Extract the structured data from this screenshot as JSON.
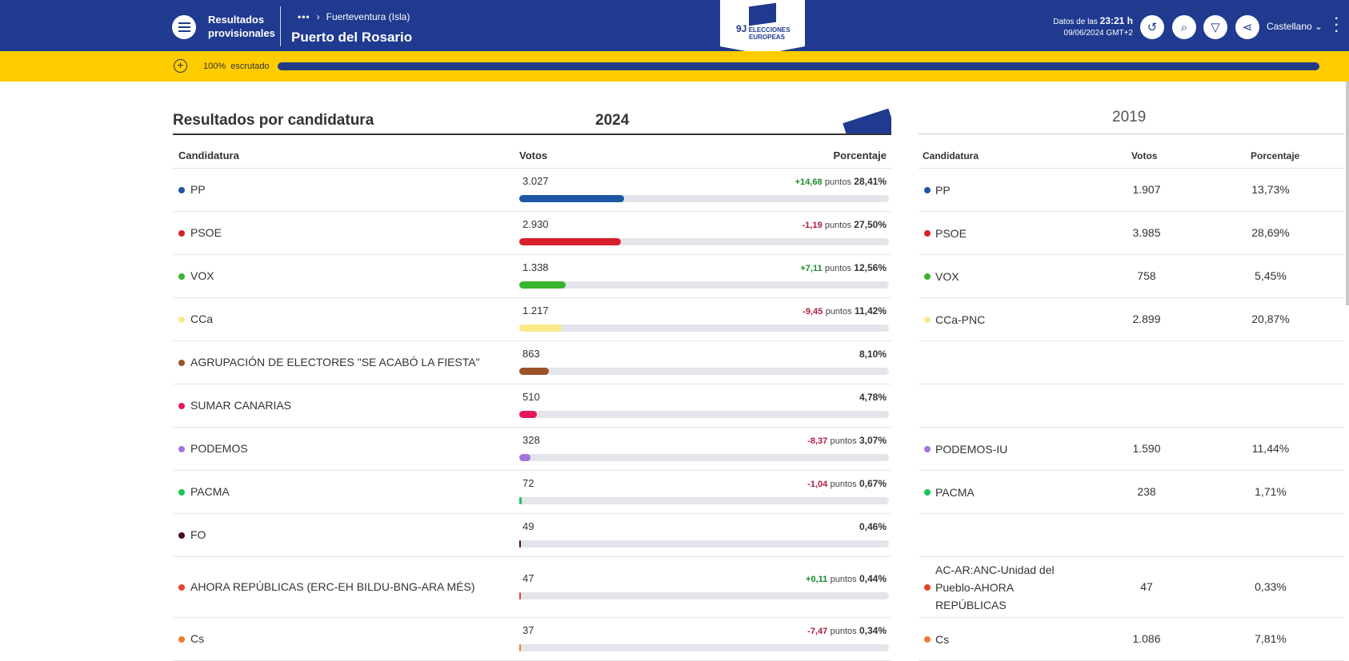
{
  "header": {
    "title_line1": "Resultados",
    "title_line2": "provisionales",
    "breadcrumb_dots": "•••",
    "breadcrumb_sep": "›",
    "breadcrumb_parent": "Fuerteventura (Isla)",
    "place": "Puerto del Rosario",
    "logo_top": "9J",
    "logo_line1": "ELECCIONES",
    "logo_line2": "EUROPEAS",
    "data_prefix": "Datos de las",
    "data_time": "23:21 h",
    "data_date": "09/06/2024 GMT+2",
    "language": "Castellano",
    "icons": [
      "history-icon",
      "search-icon",
      "filter-icon",
      "share-icon"
    ]
  },
  "scan": {
    "percent_text": "100%",
    "label": "escrutado",
    "fraction": 1.0
  },
  "main": {
    "title": "Resultados por candidatura",
    "year": "2024",
    "col_candidatura": "Candidatura",
    "col_votos": "Votos",
    "col_porcentaje": "Porcentaje",
    "rows": [
      {
        "name": "PP",
        "votes": "3.027",
        "delta": "+14,68",
        "delta_sign": "pos",
        "pts": "puntos",
        "pct": "28,41%",
        "share": 28.41,
        "color": "#1c57a5"
      },
      {
        "name": "PSOE",
        "votes": "2.930",
        "delta": "-1,19",
        "delta_sign": "neg",
        "pts": "puntos",
        "pct": "27,50%",
        "share": 27.5,
        "color": "#d7202d"
      },
      {
        "name": "VOX",
        "votes": "1.338",
        "delta": "+7,11",
        "delta_sign": "pos",
        "pts": "puntos",
        "pct": "12,56%",
        "share": 12.56,
        "color": "#39b52d"
      },
      {
        "name": "CCa",
        "votes": "1.217",
        "delta": "-9,45",
        "delta_sign": "neg",
        "pts": "puntos",
        "pct": "11,42%",
        "share": 11.42,
        "color": "#fbe98a"
      },
      {
        "name": "AGRUPACIÓN DE ELECTORES \"SE ACABÓ LA FIESTA\"",
        "votes": "863",
        "delta": "",
        "delta_sign": "",
        "pts": "",
        "pct": "8,10%",
        "share": 8.1,
        "color": "#9b5129"
      },
      {
        "name": "SUMAR CANARIAS",
        "votes": "510",
        "delta": "",
        "delta_sign": "",
        "pts": "",
        "pct": "4,78%",
        "share": 4.78,
        "color": "#e8175d"
      },
      {
        "name": "PODEMOS",
        "votes": "328",
        "delta": "-8,37",
        "delta_sign": "neg",
        "pts": "puntos",
        "pct": "3,07%",
        "share": 3.07,
        "color": "#a474dd"
      },
      {
        "name": "PACMA",
        "votes": "72",
        "delta": "-1,04",
        "delta_sign": "neg",
        "pts": "puntos",
        "pct": "0,67%",
        "share": 0.67,
        "color": "#1dc459"
      },
      {
        "name": "FO",
        "votes": "49",
        "delta": "",
        "delta_sign": "",
        "pts": "",
        "pct": "0,46%",
        "share": 0.46,
        "color": "#4a0f16"
      },
      {
        "name": "AHORA REPÚBLICAS (ERC-EH BILDU-BNG-ARA MÉS)",
        "votes": "47",
        "delta": "+0,11",
        "delta_sign": "pos",
        "pts": "puntos",
        "pct": "0,44%",
        "share": 0.44,
        "color": "#e4462a"
      },
      {
        "name": "Cs",
        "votes": "37",
        "delta": "-7,47",
        "delta_sign": "neg",
        "pts": "puntos",
        "pct": "0,34%",
        "share": 0.34,
        "color": "#ee7b35"
      }
    ]
  },
  "previous": {
    "year": "2019",
    "col_candidatura": "Candidatura",
    "col_votos": "Votos",
    "col_porcentaje": "Porcentaje",
    "rows": [
      {
        "name": "PP",
        "votes": "1.907",
        "pct": "13,73%",
        "color": "#1c57a5"
      },
      {
        "name": "PSOE",
        "votes": "3.985",
        "pct": "28,69%",
        "color": "#d7202d"
      },
      {
        "name": "VOX",
        "votes": "758",
        "pct": "5,45%",
        "color": "#39b52d"
      },
      {
        "name": "CCa-PNC",
        "votes": "2.899",
        "pct": "20,87%",
        "color": "#fbe98a"
      },
      {
        "name": "",
        "votes": "",
        "pct": "",
        "color": ""
      },
      {
        "name": "",
        "votes": "",
        "pct": "",
        "color": ""
      },
      {
        "name": "PODEMOS-IU",
        "votes": "1.590",
        "pct": "11,44%",
        "color": "#a474dd"
      },
      {
        "name": "PACMA",
        "votes": "238",
        "pct": "1,71%",
        "color": "#1dc459"
      },
      {
        "name": "",
        "votes": "",
        "pct": "",
        "color": ""
      },
      {
        "name": "AC-AR:ANC-Unidad del Pueblo-AHORA REPÚBLICAS",
        "votes": "47",
        "pct": "0,33%",
        "color": "#e4462a"
      },
      {
        "name": "Cs",
        "votes": "1.086",
        "pct": "7,81%",
        "color": "#ee7b35"
      }
    ]
  }
}
